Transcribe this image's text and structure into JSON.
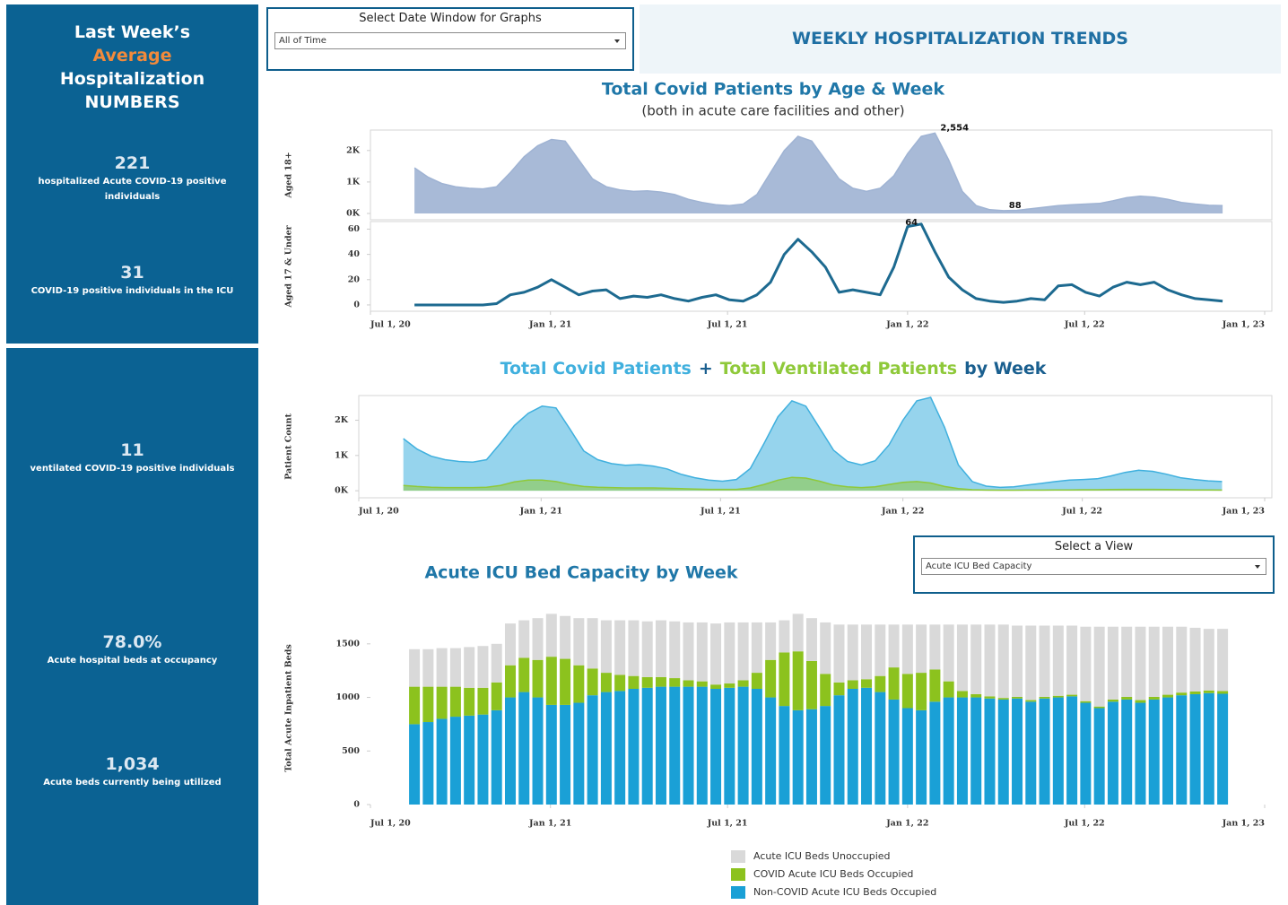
{
  "sidebar": {
    "title": [
      "Last Week’s",
      "Average",
      "Hospitalization",
      "NUMBERS"
    ],
    "stats": [
      {
        "value": "221",
        "label": "hospitalized Acute COVID-19 positive individuals"
      },
      {
        "value": "31",
        "label": "COVID-19 positive individuals in the ICU"
      },
      {
        "value": "11",
        "label": "ventilated COVID-19 positive individuals"
      },
      {
        "value": "78.0%",
        "label": "Acute hospital beds at occupancy"
      },
      {
        "value": "1,034",
        "label": "Acute beds currently being utilized"
      }
    ]
  },
  "controls": [
    {
      "label": "Select Date Window for Graphs",
      "selected": "All of Time"
    },
    {
      "label": "Select a View",
      "selected": "Acute ICU Bed Capacity"
    }
  ],
  "header": {
    "title": "WEEKLY HOSPITALIZATION TRENDS"
  },
  "chart_data": [
    {
      "type": "area",
      "title": "Total Covid Patients by Age & Week",
      "subtitle": "(both in acute care facilities and other)",
      "ylabel": "Aged 18+",
      "color": "#9fb3d3",
      "x": [
        "2020-08-15",
        "2020-08-29",
        "2020-09-12",
        "2020-09-26",
        "2020-10-10",
        "2020-10-24",
        "2020-11-07",
        "2020-11-21",
        "2020-12-05",
        "2020-12-19",
        "2021-01-02",
        "2021-01-16",
        "2021-01-30",
        "2021-02-13",
        "2021-02-27",
        "2021-03-13",
        "2021-03-27",
        "2021-04-10",
        "2021-04-24",
        "2021-05-08",
        "2021-05-22",
        "2021-06-05",
        "2021-06-19",
        "2021-07-03",
        "2021-07-17",
        "2021-07-31",
        "2021-08-14",
        "2021-08-28",
        "2021-09-11",
        "2021-09-25",
        "2021-10-09",
        "2021-10-23",
        "2021-11-06",
        "2021-11-20",
        "2021-12-04",
        "2021-12-18",
        "2022-01-01",
        "2022-01-15",
        "2022-01-29",
        "2022-02-12",
        "2022-02-26",
        "2022-03-12",
        "2022-03-26",
        "2022-04-09",
        "2022-04-23",
        "2022-05-07",
        "2022-05-21",
        "2022-06-04",
        "2022-06-18",
        "2022-07-02",
        "2022-07-16",
        "2022-07-30",
        "2022-08-13",
        "2022-08-27",
        "2022-09-10",
        "2022-09-24",
        "2022-10-08",
        "2022-10-22",
        "2022-11-05",
        "2022-11-19"
      ],
      "values": [
        1450,
        1150,
        950,
        850,
        800,
        780,
        850,
        1300,
        1800,
        2150,
        2350,
        2300,
        1700,
        1100,
        850,
        750,
        700,
        720,
        680,
        600,
        450,
        350,
        280,
        250,
        300,
        600,
        1300,
        2000,
        2450,
        2300,
        1700,
        1100,
        800,
        700,
        800,
        1200,
        1900,
        2450,
        2554,
        1700,
        700,
        250,
        120,
        88,
        100,
        150,
        200,
        250,
        280,
        300,
        320,
        400,
        500,
        550,
        520,
        450,
        350,
        300,
        260,
        250
      ],
      "value_labels": [
        null,
        null,
        null,
        null,
        null,
        null,
        null,
        null,
        null,
        null,
        null,
        null,
        null,
        null,
        null,
        null,
        null,
        null,
        null,
        null,
        null,
        null,
        null,
        null,
        null,
        null,
        null,
        null,
        null,
        null,
        null,
        null,
        null,
        null,
        null,
        null,
        null,
        null,
        "2,554",
        null,
        null,
        null,
        null,
        "88",
        null,
        null,
        null,
        null,
        null,
        null,
        null,
        null,
        null,
        null,
        null,
        null,
        null,
        null,
        null,
        null
      ],
      "xlim": [
        "2020-07-01",
        "2023-01-01"
      ],
      "ylim": [
        -200,
        2650
      ],
      "yticks": [
        {
          "value": 0,
          "label": "0K"
        },
        {
          "value": 1000,
          "label": "1K"
        },
        {
          "value": 2000,
          "label": "2K"
        }
      ]
    },
    {
      "type": "line",
      "ylabel": "Aged 17 & Under",
      "color": "#1d6a90",
      "x": [
        "2020-08-15",
        "2020-08-29",
        "2020-09-12",
        "2020-09-26",
        "2020-10-10",
        "2020-10-24",
        "2020-11-07",
        "2020-11-21",
        "2020-12-05",
        "2020-12-19",
        "2021-01-02",
        "2021-01-16",
        "2021-01-30",
        "2021-02-13",
        "2021-02-27",
        "2021-03-13",
        "2021-03-27",
        "2021-04-10",
        "2021-04-24",
        "2021-05-08",
        "2021-05-22",
        "2021-06-05",
        "2021-06-19",
        "2021-07-03",
        "2021-07-17",
        "2021-07-31",
        "2021-08-14",
        "2021-08-28",
        "2021-09-11",
        "2021-09-25",
        "2021-10-09",
        "2021-10-23",
        "2021-11-06",
        "2021-11-20",
        "2021-12-04",
        "2021-12-18",
        "2022-01-01",
        "2022-01-15",
        "2022-01-29",
        "2022-02-12",
        "2022-02-26",
        "2022-03-12",
        "2022-03-26",
        "2022-04-09",
        "2022-04-23",
        "2022-05-07",
        "2022-05-21",
        "2022-06-04",
        "2022-06-18",
        "2022-07-02",
        "2022-07-16",
        "2022-07-30",
        "2022-08-13",
        "2022-08-27",
        "2022-09-10",
        "2022-09-24",
        "2022-10-08",
        "2022-10-22",
        "2022-11-05",
        "2022-11-19"
      ],
      "values": [
        0,
        0,
        0,
        0,
        0,
        0,
        1,
        8,
        10,
        14,
        20,
        14,
        8,
        11,
        12,
        5,
        7,
        6,
        8,
        5,
        3,
        6,
        8,
        4,
        3,
        8,
        18,
        40,
        52,
        42,
        30,
        10,
        12,
        10,
        8,
        30,
        62,
        64,
        42,
        22,
        12,
        5,
        3,
        2,
        3,
        5,
        4,
        15,
        16,
        10,
        7,
        14,
        18,
        16,
        18,
        12,
        8,
        5,
        4,
        3
      ],
      "value_labels": [
        null,
        null,
        null,
        null,
        null,
        null,
        null,
        null,
        null,
        null,
        null,
        null,
        null,
        null,
        null,
        null,
        null,
        null,
        null,
        null,
        null,
        null,
        null,
        null,
        null,
        null,
        null,
        null,
        null,
        null,
        null,
        null,
        null,
        null,
        null,
        null,
        null,
        "64",
        null,
        null,
        null,
        null,
        null,
        null,
        null,
        null,
        null,
        null,
        null,
        null,
        null,
        null,
        null,
        null,
        null,
        null,
        null,
        null,
        null,
        null
      ],
      "xlim": [
        "2020-07-01",
        "2023-01-01"
      ],
      "xticks": [
        {
          "value": "2020-07-01",
          "label": "Jul 1, 20"
        },
        {
          "value": "2021-01-01",
          "label": "Jan 1, 21"
        },
        {
          "value": "2021-07-01",
          "label": "Jul 1, 21"
        },
        {
          "value": "2022-01-01",
          "label": "Jan 1, 22"
        },
        {
          "value": "2022-07-01",
          "label": "Jul 1, 22"
        },
        {
          "value": "2023-01-01",
          "label": "Jan 1, 23"
        }
      ],
      "ylim": [
        -5,
        66
      ],
      "yticks": [
        0,
        20,
        40,
        60
      ]
    },
    {
      "type": "area",
      "title": [
        "Total Covid Patients",
        "+",
        "Total Ventilated Patients",
        "by Week"
      ],
      "ylabel": "Patient Count",
      "x": [
        "2020-08-15",
        "2020-08-29",
        "2020-09-12",
        "2020-09-26",
        "2020-10-10",
        "2020-10-24",
        "2020-11-07",
        "2020-11-21",
        "2020-12-05",
        "2020-12-19",
        "2021-01-02",
        "2021-01-16",
        "2021-01-30",
        "2021-02-13",
        "2021-02-27",
        "2021-03-13",
        "2021-03-27",
        "2021-04-10",
        "2021-04-24",
        "2021-05-08",
        "2021-05-22",
        "2021-06-05",
        "2021-06-19",
        "2021-07-03",
        "2021-07-17",
        "2021-07-31",
        "2021-08-14",
        "2021-08-28",
        "2021-09-11",
        "2021-09-25",
        "2021-10-09",
        "2021-10-23",
        "2021-11-06",
        "2021-11-20",
        "2021-12-04",
        "2021-12-18",
        "2022-01-01",
        "2022-01-15",
        "2022-01-29",
        "2022-02-12",
        "2022-02-26",
        "2022-03-12",
        "2022-03-26",
        "2022-04-09",
        "2022-04-23",
        "2022-05-07",
        "2022-05-21",
        "2022-06-04",
        "2022-06-18",
        "2022-07-02",
        "2022-07-16",
        "2022-07-30",
        "2022-08-13",
        "2022-08-27",
        "2022-09-10",
        "2022-09-24",
        "2022-10-08",
        "2022-10-22",
        "2022-11-05",
        "2022-11-19"
      ],
      "series": [
        {
          "color": "#40b0de",
          "values": [
            1480,
            1180,
            980,
            880,
            830,
            810,
            880,
            1350,
            1850,
            2200,
            2400,
            2350,
            1750,
            1130,
            880,
            770,
            720,
            740,
            700,
            620,
            470,
            370,
            300,
            270,
            320,
            630,
            1350,
            2100,
            2550,
            2400,
            1780,
            1150,
            830,
            730,
            850,
            1300,
            2000,
            2550,
            2650,
            1800,
            730,
            260,
            130,
            95,
            110,
            160,
            210,
            260,
            300,
            320,
            340,
            420,
            520,
            580,
            550,
            470,
            370,
            320,
            280,
            260
          ]
        },
        {
          "color": "#8fc93a",
          "values": [
            150,
            120,
            100,
            90,
            90,
            90,
            100,
            150,
            250,
            300,
            300,
            260,
            180,
            120,
            100,
            90,
            80,
            80,
            80,
            70,
            60,
            50,
            40,
            40,
            40,
            80,
            180,
            300,
            380,
            360,
            270,
            160,
            110,
            90,
            110,
            180,
            240,
            260,
            220,
            120,
            60,
            30,
            20,
            15,
            15,
            20,
            20,
            25,
            25,
            30,
            30,
            35,
            40,
            40,
            40,
            35,
            30,
            25,
            25,
            20
          ]
        }
      ],
      "xlim": [
        "2020-07-01",
        "2023-01-01"
      ],
      "xticks": [
        {
          "value": "2020-07-01",
          "label": "Jul 1, 20"
        },
        {
          "value": "2021-01-01",
          "label": "Jan 1, 21"
        },
        {
          "value": "2021-07-01",
          "label": "Jul 1, 21"
        },
        {
          "value": "2022-01-01",
          "label": "Jan 1, 22"
        },
        {
          "value": "2022-07-01",
          "label": "Jul 1, 22"
        },
        {
          "value": "2023-01-01",
          "label": "Jan 1, 23"
        }
      ],
      "ylim": [
        -200,
        2700
      ],
      "yticks": [
        {
          "value": 0,
          "label": "0K"
        },
        {
          "value": 1000,
          "label": "1K"
        },
        {
          "value": 2000,
          "label": "2K"
        }
      ]
    },
    {
      "type": "stacked_bar",
      "title": "Acute ICU Bed Capacity by Week",
      "ylabel": "Total Acute Inpatient Beds",
      "x": [
        "2020-08-15",
        "2020-08-29",
        "2020-09-12",
        "2020-09-26",
        "2020-10-10",
        "2020-10-24",
        "2020-11-07",
        "2020-11-21",
        "2020-12-05",
        "2020-12-19",
        "2021-01-02",
        "2021-01-16",
        "2021-01-30",
        "2021-02-13",
        "2021-02-27",
        "2021-03-13",
        "2021-03-27",
        "2021-04-10",
        "2021-04-24",
        "2021-05-08",
        "2021-05-22",
        "2021-06-05",
        "2021-06-19",
        "2021-07-03",
        "2021-07-17",
        "2021-07-31",
        "2021-08-14",
        "2021-08-28",
        "2021-09-11",
        "2021-09-25",
        "2021-10-09",
        "2021-10-23",
        "2021-11-06",
        "2021-11-20",
        "2021-12-04",
        "2021-12-18",
        "2022-01-01",
        "2022-01-15",
        "2022-01-29",
        "2022-02-12",
        "2022-02-26",
        "2022-03-12",
        "2022-03-26",
        "2022-04-09",
        "2022-04-23",
        "2022-05-07",
        "2022-05-21",
        "2022-06-04",
        "2022-06-18",
        "2022-07-02",
        "2022-07-16",
        "2022-07-30",
        "2022-08-13",
        "2022-08-27",
        "2022-09-10",
        "2022-09-24",
        "2022-10-08",
        "2022-10-22",
        "2022-11-05",
        "2022-11-19"
      ],
      "series": [
        {
          "name": "Acute ICU Beds Unoccupied",
          "color": "#d9d9d9",
          "values": [
            350,
            350,
            360,
            360,
            380,
            390,
            360,
            390,
            350,
            390,
            400,
            400,
            440,
            470,
            490,
            510,
            520,
            520,
            530,
            530,
            540,
            550,
            570,
            570,
            540,
            470,
            350,
            300,
            350,
            400,
            480,
            540,
            520,
            510,
            480,
            400,
            460,
            450,
            420,
            530,
            620,
            650,
            670,
            685,
            665,
            695,
            665,
            655,
            645,
            695,
            745,
            680,
            655,
            685,
            655,
            635,
            615,
            595,
            575,
            581
          ]
        },
        {
          "name": "COVID Acute ICU Beds Occupied",
          "color": "#8cc21e",
          "values": [
            350,
            330,
            300,
            280,
            260,
            250,
            260,
            300,
            320,
            350,
            450,
            430,
            350,
            250,
            180,
            150,
            120,
            100,
            90,
            80,
            60,
            50,
            40,
            40,
            60,
            150,
            350,
            500,
            550,
            450,
            300,
            120,
            80,
            80,
            150,
            300,
            320,
            350,
            300,
            150,
            60,
            30,
            20,
            15,
            15,
            15,
            15,
            15,
            15,
            15,
            15,
            20,
            25,
            25,
            25,
            25,
            25,
            25,
            25,
            25
          ]
        },
        {
          "name": "Non-COVID Acute ICU Beds Occupied",
          "color": "#1aa0d6",
          "values": [
            750,
            770,
            800,
            820,
            830,
            840,
            880,
            1000,
            1050,
            1000,
            930,
            930,
            950,
            1020,
            1050,
            1060,
            1080,
            1090,
            1100,
            1100,
            1100,
            1100,
            1080,
            1090,
            1100,
            1080,
            1000,
            920,
            880,
            890,
            920,
            1020,
            1080,
            1090,
            1050,
            980,
            900,
            880,
            960,
            1000,
            1000,
            1000,
            990,
            980,
            990,
            960,
            990,
            1000,
            1010,
            950,
            900,
            960,
            980,
            950,
            980,
            1000,
            1020,
            1030,
            1040,
            1034
          ]
        }
      ],
      "xlim": [
        "2020-07-01",
        "2023-01-01"
      ],
      "xticks": [
        {
          "value": "2020-07-01",
          "label": "Jul 1, 20"
        },
        {
          "value": "2021-01-01",
          "label": "Jan 1, 21"
        },
        {
          "value": "2021-07-01",
          "label": "Jul 1, 21"
        },
        {
          "value": "2022-01-01",
          "label": "Jan 1, 22"
        },
        {
          "value": "2022-07-01",
          "label": "Jul 1, 22"
        },
        {
          "value": "2023-01-01",
          "label": "Jan 1, 23"
        }
      ],
      "ylim": [
        0,
        1800
      ],
      "yticks": [
        0,
        500,
        1000,
        1500
      ]
    }
  ]
}
